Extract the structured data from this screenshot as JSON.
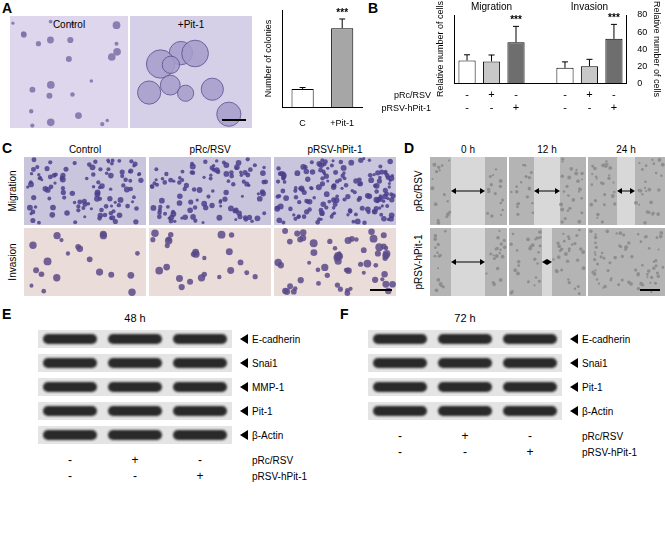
{
  "chart_data": [
    {
      "type": "bar",
      "categories": [
        "C",
        "+Pit-1"
      ],
      "values": [
        75,
        325
      ],
      "errors": [
        6,
        38
      ],
      "colors": [
        "#ffffff",
        "#a6a6a6"
      ],
      "y_label": "Number of colonies",
      "ylim": [
        0,
        400
      ],
      "grid": false,
      "annotations": [
        {
          "index": 1,
          "text": "***"
        }
      ]
    },
    {
      "type": "bar",
      "categories": [
        null,
        null,
        null,
        null,
        null,
        null,
        null
      ],
      "series": [
        {
          "name": "Migration",
          "axis": "y",
          "values": [
            100,
            96,
            180,
            null,
            null,
            null,
            null
          ],
          "errors": [
            25,
            28,
            70,
            null,
            null,
            null,
            null
          ],
          "colors": [
            "#ffffff",
            "#c8c8c8",
            "#6e6e6e",
            null,
            null,
            null,
            null
          ]
        },
        {
          "name": "Invasion",
          "axis": "y2",
          "values": [
            null,
            null,
            null,
            null,
            18,
            20,
            52
          ],
          "errors": [
            null,
            null,
            null,
            null,
            7,
            8,
            17
          ],
          "colors": [
            null,
            null,
            null,
            null,
            "#ffffff",
            "#c8c8c8",
            "#6e6e6e"
          ]
        }
      ],
      "y_label": "Relative number of cells",
      "y2_label": "Relative number of cells",
      "ylim": [
        0,
        300
      ],
      "y2lim": [
        0,
        80
      ],
      "y2ticks": [
        0,
        20,
        40,
        60,
        80
      ],
      "grid": false,
      "annotations": [
        {
          "index": 2,
          "text": "***"
        },
        {
          "index": 6,
          "text": "***"
        }
      ],
      "conditions": [
        {
          "label": "pRc/RSV",
          "marks": [
            "-",
            "+",
            "-"
          ]
        },
        {
          "label": "pRSV-hPit-1",
          "marks": [
            "-",
            "-",
            "+"
          ]
        }
      ]
    }
  ],
  "figure": {
    "panel_letters": [
      "A",
      "B",
      "C",
      "D",
      "E",
      "F"
    ],
    "A": {
      "images": [
        "Control",
        "+Pit-1"
      ]
    },
    "C": {
      "columns": [
        "Control",
        "pRc/RSV",
        "pRSV-hPit-1"
      ],
      "rows": [
        "Migration",
        "Invasion"
      ]
    },
    "D": {
      "columns": [
        "0 h",
        "12 h",
        "24 h"
      ],
      "rows": [
        "pRc/RSV",
        "pRSV-hPit-1"
      ]
    },
    "E": {
      "title": "48 h",
      "bands": [
        "E-cadherin",
        "Snai1",
        "MMP-1",
        "Pit-1",
        "β-Actin"
      ],
      "conditions": [
        {
          "label": "pRc/RSV",
          "marks": [
            "-",
            "+",
            "-"
          ]
        },
        {
          "label": "pRSV-hPit-1",
          "marks": [
            "-",
            "-",
            "+"
          ]
        }
      ]
    },
    "F": {
      "title": "72 h",
      "bands": [
        "E-cadherin",
        "Snai1",
        "Pit-1",
        "β-Actin"
      ],
      "conditions": [
        {
          "label": "pRc/RSV",
          "marks": [
            "-",
            "+",
            "-"
          ]
        },
        {
          "label": "pRSV-hPit-1",
          "marks": [
            "-",
            "-",
            "+"
          ]
        }
      ]
    }
  }
}
